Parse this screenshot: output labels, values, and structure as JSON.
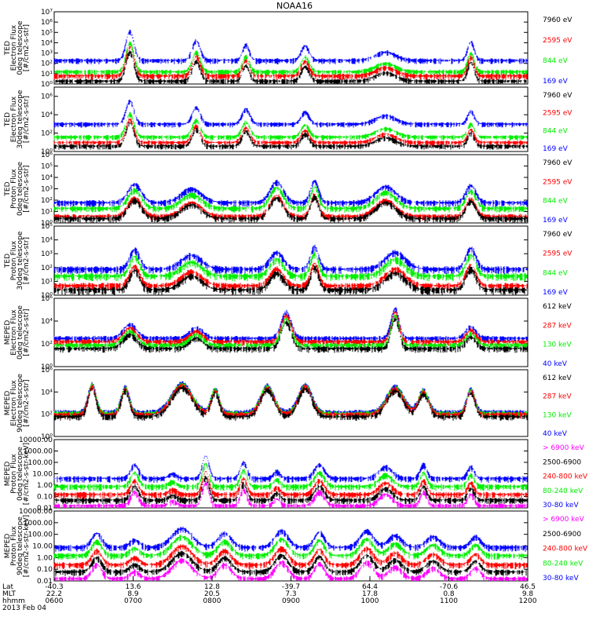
{
  "title": "NOAA16",
  "date_label": "2013 Feb 04",
  "footer": {
    "row_labels": [
      "Lat",
      "MLT",
      "hhmm"
    ],
    "columns": [
      {
        "lat": "-40.3",
        "mlt": "22.2",
        "hhmm": "0600"
      },
      {
        "lat": "13.6",
        "mlt": "8.9",
        "hhmm": "0700"
      },
      {
        "lat": "12.8",
        "mlt": "20.5",
        "hhmm": "0800"
      },
      {
        "lat": "-39.7",
        "mlt": "7.3",
        "hhmm": "0900"
      },
      {
        "lat": "64.4",
        "mlt": "17.8",
        "hhmm": "1000"
      },
      {
        "lat": "-70.6",
        "mlt": "0.8",
        "hhmm": "1100"
      },
      {
        "lat": "46.5",
        "mlt": "9.8",
        "hhmm": "1200"
      }
    ]
  },
  "colors": {
    "black": "#000000",
    "red": "#ff0000",
    "green": "#00ee00",
    "blue": "#0000ff",
    "magenta": "#ff00ff"
  },
  "chart_data": [
    {
      "type": "scatter",
      "ylabel_lines": [
        "TED",
        "Electron Flux",
        "0deg telescope",
        "[#/cm2-s-str]"
      ],
      "y_scale": "log",
      "ylim": [
        1,
        10000000.0
      ],
      "y_ticks": [
        "10^0",
        "10^1",
        "10^2",
        "10^3",
        "10^4",
        "10^5",
        "10^6",
        "10^7"
      ],
      "channels": [
        {
          "label": "7960 eV",
          "color": "#000000",
          "base": 0.3
        },
        {
          "label": "2595 eV",
          "color": "#ff0000",
          "base": 0.8
        },
        {
          "label": "844 eV",
          "color": "#00ee00",
          "base": 1.2
        },
        {
          "label": "169 eV",
          "color": "#0000ff",
          "base": 2.3
        }
      ],
      "events": [
        [
          0.16,
          0.012,
          2.8
        ],
        [
          0.3,
          0.012,
          1.9
        ],
        [
          0.405,
          0.01,
          1.5
        ],
        [
          0.53,
          0.012,
          1.4
        ],
        [
          0.7,
          0.03,
          0.8
        ],
        [
          0.88,
          0.01,
          1.8
        ]
      ]
    },
    {
      "type": "scatter",
      "ylabel_lines": [
        "TED",
        "Electron Flux",
        "30deg telescope",
        "[#/cm2-s-str]"
      ],
      "y_scale": "log",
      "ylim": [
        1,
        10000000.0
      ],
      "y_ticks": [
        "10^0",
        "10^2",
        "10^4",
        "10^6"
      ],
      "channels": [
        {
          "label": "7960 eV",
          "color": "#000000",
          "base": 0.6
        },
        {
          "label": "2595 eV",
          "color": "#ff0000",
          "base": 1.0
        },
        {
          "label": "844 eV",
          "color": "#00ee00",
          "base": 1.6
        },
        {
          "label": "169 eV",
          "color": "#0000ff",
          "base": 3.0
        }
      ],
      "events": [
        [
          0.16,
          0.012,
          2.5
        ],
        [
          0.3,
          0.012,
          1.8
        ],
        [
          0.405,
          0.012,
          1.6
        ],
        [
          0.53,
          0.012,
          1.3
        ],
        [
          0.7,
          0.03,
          0.9
        ],
        [
          0.88,
          0.01,
          1.4
        ]
      ]
    },
    {
      "type": "scatter",
      "ylabel_lines": [
        "TED",
        "Proton Flux",
        "0deg telescope",
        "[#/cm2-s-str]"
      ],
      "y_scale": "log",
      "ylim": [
        1,
        1000000.0
      ],
      "y_ticks": [
        "10^0",
        "10^1",
        "10^2",
        "10^3",
        "10^4",
        "10^5",
        "10^6"
      ],
      "channels": [
        {
          "label": "7960 eV",
          "color": "#000000",
          "base": 0.4
        },
        {
          "label": "2595 eV",
          "color": "#ff0000",
          "base": 0.6
        },
        {
          "label": "844 eV",
          "color": "#00ee00",
          "base": 1.3
        },
        {
          "label": "169 eV",
          "color": "#0000ff",
          "base": 1.8
        }
      ],
      "events": [
        [
          0.17,
          0.02,
          1.6
        ],
        [
          0.29,
          0.03,
          1.2
        ],
        [
          0.47,
          0.02,
          1.8
        ],
        [
          0.55,
          0.012,
          1.9
        ],
        [
          0.7,
          0.03,
          1.4
        ],
        [
          0.88,
          0.015,
          1.5
        ]
      ]
    },
    {
      "type": "scatter",
      "ylabel_lines": [
        "TED",
        "Proton Flux",
        "30deg telescope",
        "[#/cm2-s-str]"
      ],
      "y_scale": "log",
      "ylim": [
        1,
        100000.0
      ],
      "y_ticks": [
        "10^0",
        "10^1",
        "10^2",
        "10^3",
        "10^4",
        "10^5"
      ],
      "channels": [
        {
          "label": "7960 eV",
          "color": "#000000",
          "base": 0.4
        },
        {
          "label": "2595 eV",
          "color": "#ff0000",
          "base": 0.7
        },
        {
          "label": "844 eV",
          "color": "#00ee00",
          "base": 1.4
        },
        {
          "label": "169 eV",
          "color": "#0000ff",
          "base": 1.9
        }
      ],
      "events": [
        [
          0.17,
          0.015,
          1.4
        ],
        [
          0.29,
          0.03,
          1.0
        ],
        [
          0.47,
          0.02,
          1.2
        ],
        [
          0.55,
          0.012,
          1.6
        ],
        [
          0.72,
          0.03,
          1.2
        ],
        [
          0.88,
          0.015,
          1.5
        ]
      ]
    },
    {
      "type": "scatter",
      "ylabel_lines": [
        "MEPED",
        "Electron Flux",
        "0deg telescope",
        "[#/cm2-s-str]"
      ],
      "y_scale": "log",
      "ylim": [
        1,
        1000000.0
      ],
      "y_ticks": [
        "10^0",
        "10^2",
        "10^4",
        "10^6"
      ],
      "channels": [
        {
          "label": "612 keV",
          "color": "#000000",
          "base": 1.6
        },
        {
          "label": "287 keV",
          "color": "#ff0000",
          "base": 2.2
        },
        {
          "label": "130 keV",
          "color": "#00ee00",
          "base": 1.9
        },
        {
          "label": "40 keV",
          "color": "#0000ff",
          "base": 2.5
        }
      ],
      "events": [
        [
          0.16,
          0.02,
          1.2
        ],
        [
          0.3,
          0.02,
          0.9
        ],
        [
          0.49,
          0.015,
          2.3
        ],
        [
          0.72,
          0.012,
          2.6
        ],
        [
          0.88,
          0.015,
          1.0
        ]
      ]
    },
    {
      "type": "scatter",
      "ylabel_lines": [
        "MEPED",
        "Electron Flux",
        "90deg telescope",
        "[#/cm2-s-str]"
      ],
      "y_scale": "log",
      "ylim": [
        1,
        1000000.0
      ],
      "y_ticks": [
        "10^0",
        "10^2",
        "10^4",
        "10^6"
      ],
      "channels": [
        {
          "label": "612 keV",
          "color": "#000000",
          "base": 1.8
        },
        {
          "label": "287 keV",
          "color": "#ff0000",
          "base": 2.0
        },
        {
          "label": "130 keV",
          "color": "#00ee00",
          "base": 2.1
        },
        {
          "label": "40 keV",
          "color": "#0000ff",
          "base": 2.2
        }
      ],
      "events": [
        [
          0.08,
          0.012,
          2.5
        ],
        [
          0.15,
          0.012,
          2.3
        ],
        [
          0.27,
          0.03,
          2.6
        ],
        [
          0.34,
          0.012,
          2.1
        ],
        [
          0.45,
          0.02,
          2.4
        ],
        [
          0.53,
          0.02,
          2.5
        ],
        [
          0.72,
          0.025,
          2.3
        ],
        [
          0.78,
          0.015,
          2.0
        ],
        [
          0.88,
          0.012,
          2.1
        ]
      ]
    },
    {
      "type": "scatter",
      "ylabel_lines": [
        "MEPED",
        "Proton Flux",
        "0deg telescope",
        "[#/cm2-s-str-keV]"
      ],
      "y_scale": "log",
      "ylim": [
        0.01,
        10000
      ],
      "y_ticks": [
        "0.01",
        "0.10",
        "1.00",
        "10.00",
        "100.00",
        "1000.00",
        "10000.00"
      ],
      "channels": [
        {
          "label": "> 6900 keV",
          "color": "#ff00ff",
          "base": -1.8
        },
        {
          "label": "2500-6900",
          "color": "#000000",
          "base": -1.3
        },
        {
          "label": "240-800 keV",
          "color": "#ff0000",
          "base": -0.8
        },
        {
          "label": "80-240 keV",
          "color": "#00ee00",
          "base": -0.1
        },
        {
          "label": "30-80 keV",
          "color": "#0000ff",
          "base": 0.6
        }
      ],
      "events": [
        [
          0.17,
          0.012,
          1.2
        ],
        [
          0.25,
          0.012,
          0.4
        ],
        [
          0.32,
          0.01,
          2.0
        ],
        [
          0.4,
          0.01,
          1.4
        ],
        [
          0.47,
          0.01,
          0.6
        ],
        [
          0.56,
          0.015,
          1.2
        ],
        [
          0.7,
          0.02,
          1.0
        ],
        [
          0.78,
          0.01,
          1.2
        ],
        [
          0.88,
          0.01,
          1.0
        ]
      ]
    },
    {
      "type": "scatter",
      "ylabel_lines": [
        "MEPED",
        "Proton Flux",
        "90deg telescope",
        "[#/cm2-s-str-keV]"
      ],
      "y_scale": "log",
      "ylim": [
        0.01,
        10000
      ],
      "y_ticks": [
        "0.01",
        "0.10",
        "1.00",
        "10.00",
        "100.00",
        "1000.00",
        "10000.00"
      ],
      "channels": [
        {
          "label": "> 6900 keV",
          "color": "#ff00ff",
          "base": -1.8
        },
        {
          "label": "2500-6900",
          "color": "#000000",
          "base": -1.2
        },
        {
          "label": "240-800 keV",
          "color": "#ff0000",
          "base": -0.6
        },
        {
          "label": "80-240 keV",
          "color": "#00ee00",
          "base": 0.2
        },
        {
          "label": "30-80 keV",
          "color": "#0000ff",
          "base": 0.9
        }
      ],
      "events": [
        [
          0.09,
          0.015,
          1.2
        ],
        [
          0.17,
          0.015,
          0.6
        ],
        [
          0.27,
          0.03,
          1.6
        ],
        [
          0.36,
          0.02,
          1.2
        ],
        [
          0.48,
          0.02,
          1.4
        ],
        [
          0.56,
          0.015,
          1.3
        ],
        [
          0.66,
          0.02,
          1.4
        ],
        [
          0.72,
          0.02,
          1.0
        ],
        [
          0.8,
          0.02,
          0.9
        ],
        [
          0.89,
          0.015,
          0.9
        ]
      ]
    }
  ]
}
